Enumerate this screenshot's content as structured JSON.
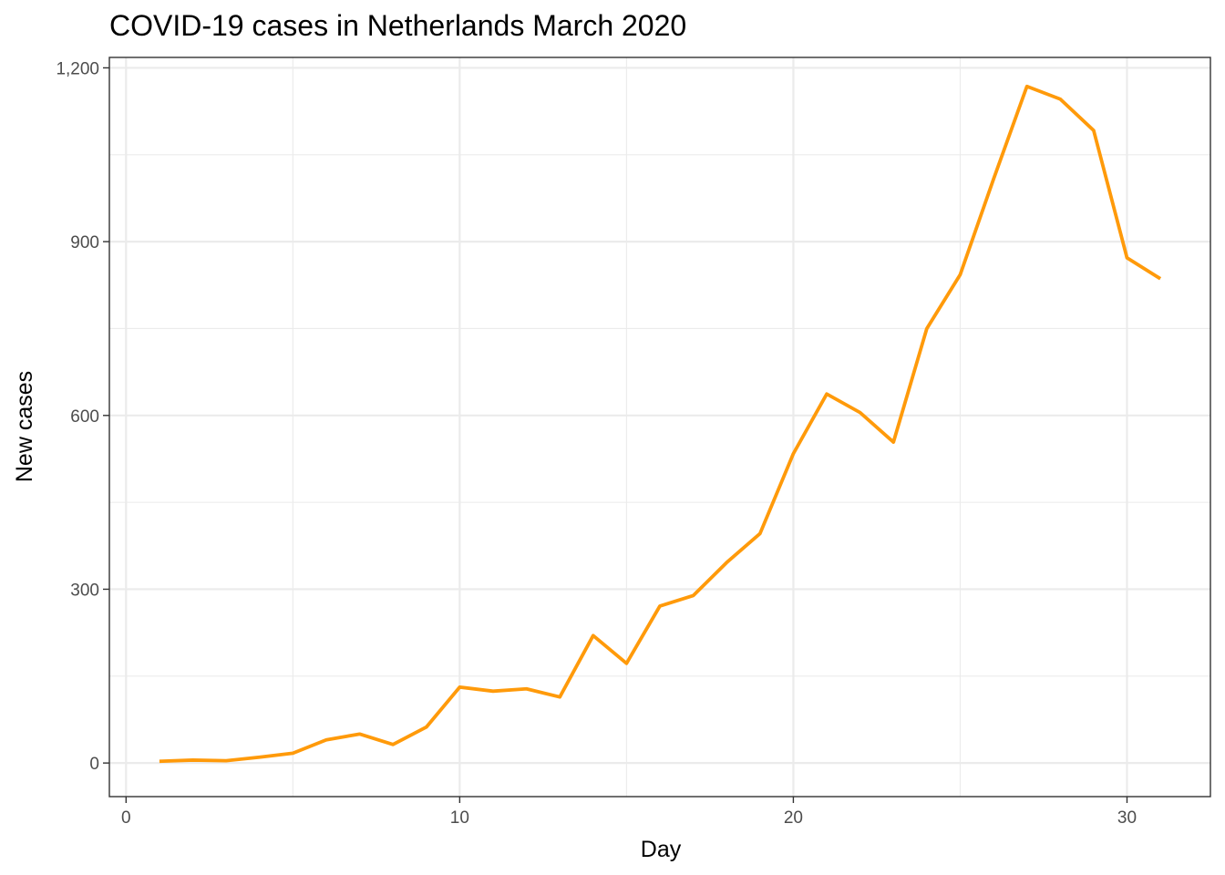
{
  "chart_data": {
    "type": "line",
    "title": "COVID-19 cases in Netherlands March 2020",
    "xlabel": "Day",
    "ylabel": "New cases",
    "xlim": [
      -0.5,
      32.5
    ],
    "ylim": [
      -58,
      1218
    ],
    "x_ticks": [
      0,
      10,
      20,
      30
    ],
    "x_tick_labels": [
      "0",
      "10",
      "20",
      "30"
    ],
    "y_ticks": [
      0,
      300,
      600,
      900,
      1200
    ],
    "y_tick_labels": [
      "0",
      "300",
      "600",
      "900",
      "1,200"
    ],
    "x_minor_ticks": [
      5,
      15,
      25
    ],
    "y_minor_ticks": [
      150,
      450,
      750,
      1050
    ],
    "grid": true,
    "legend": "none",
    "color": "#ff9a0a",
    "x": [
      1,
      2,
      3,
      4,
      5,
      6,
      7,
      8,
      9,
      10,
      11,
      12,
      13,
      14,
      15,
      16,
      17,
      18,
      19,
      20,
      21,
      22,
      23,
      24,
      25,
      26,
      27,
      28,
      29,
      30,
      31
    ],
    "series": [
      {
        "values": [
          3,
          5,
          4,
          10,
          17,
          40,
          50,
          32,
          62,
          131,
          124,
          128,
          114,
          220,
          172,
          271,
          289,
          346,
          396,
          534,
          637,
          605,
          554,
          750,
          843,
          1008,
          1168,
          1146,
          1092,
          872,
          836
        ]
      }
    ]
  }
}
